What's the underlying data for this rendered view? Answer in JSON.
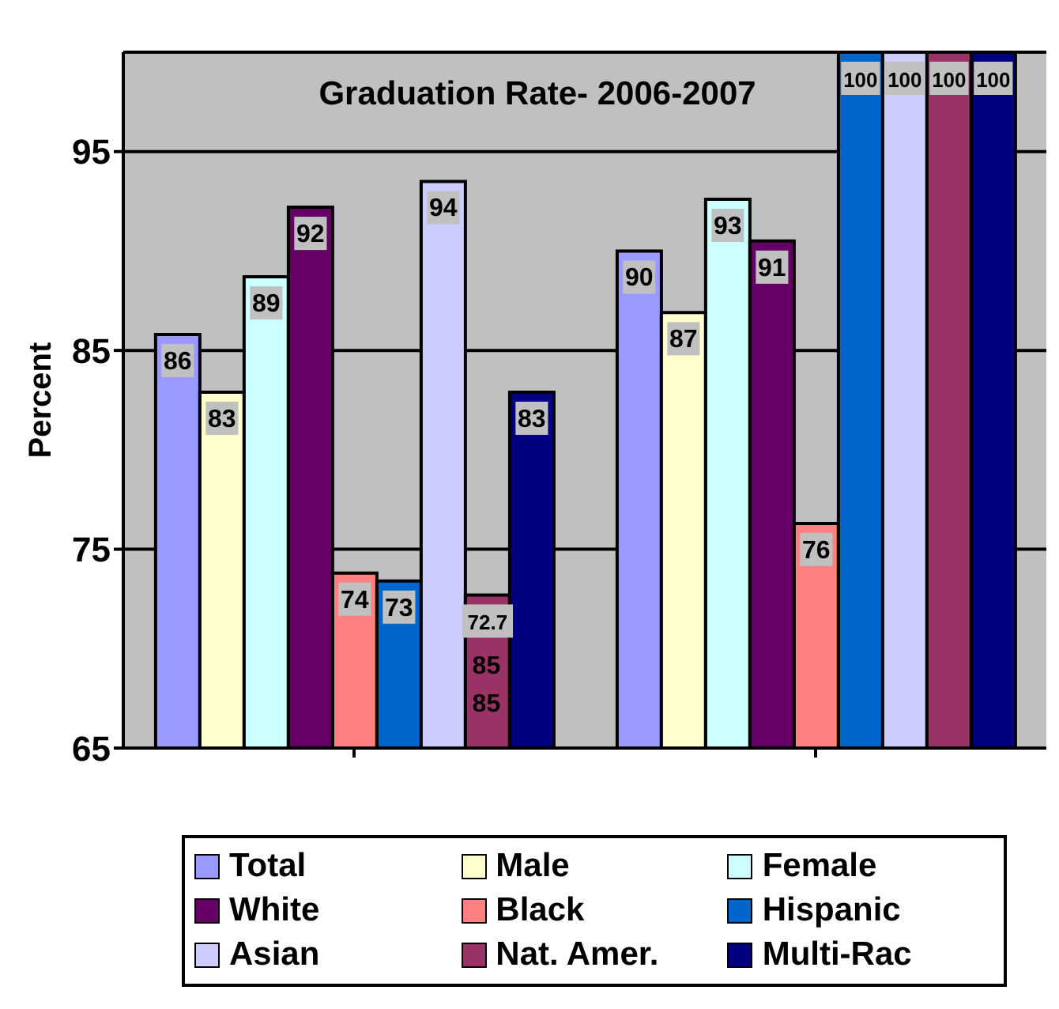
{
  "chart_data": {
    "type": "bar",
    "title": "Graduation Rate- 2006-2007",
    "ylabel": "Percent",
    "categories": [
      null,
      null
    ],
    "series": [
      {
        "name": "Total",
        "color": "#9999ff",
        "values": [
          85.8,
          90.0
        ],
        "value_labels": [
          "86",
          "90"
        ]
      },
      {
        "name": "Male",
        "color": "#ffffcc",
        "values": [
          82.9,
          86.9
        ],
        "value_labels": [
          "83",
          "87"
        ]
      },
      {
        "name": "Female",
        "color": "#ccffff",
        "values": [
          88.7,
          92.6
        ],
        "value_labels": [
          "89",
          "93"
        ]
      },
      {
        "name": "White",
        "color": "#660066",
        "values": [
          92.2,
          90.5
        ],
        "value_labels": [
          "92",
          "91"
        ]
      },
      {
        "name": "Black",
        "color": "#ff8080",
        "values": [
          73.8,
          76.3
        ],
        "value_labels": [
          "74",
          "76"
        ]
      },
      {
        "name": "Hispanic",
        "color": "#0066cc",
        "values": [
          73.4,
          100
        ],
        "value_labels": [
          "73",
          "100"
        ]
      },
      {
        "name": "Asian",
        "color": "#ccccff",
        "values": [
          93.5,
          100
        ],
        "value_labels": [
          "94",
          "100"
        ]
      },
      {
        "name": "Nat. Amer.",
        "color": "#993366",
        "values": [
          72.7,
          100
        ],
        "value_labels": [
          "72.7",
          "100"
        ]
      },
      {
        "name": "Multi-Rac",
        "color": "#000080",
        "values": [
          82.9,
          100
        ],
        "value_labels": [
          "83",
          "100"
        ]
      }
    ],
    "annotations": [
      "85",
      "85"
    ],
    "ylim": [
      65,
      100
    ],
    "yticks": [
      65,
      75,
      85,
      95
    ],
    "grid": "y",
    "legend": "bottom"
  }
}
